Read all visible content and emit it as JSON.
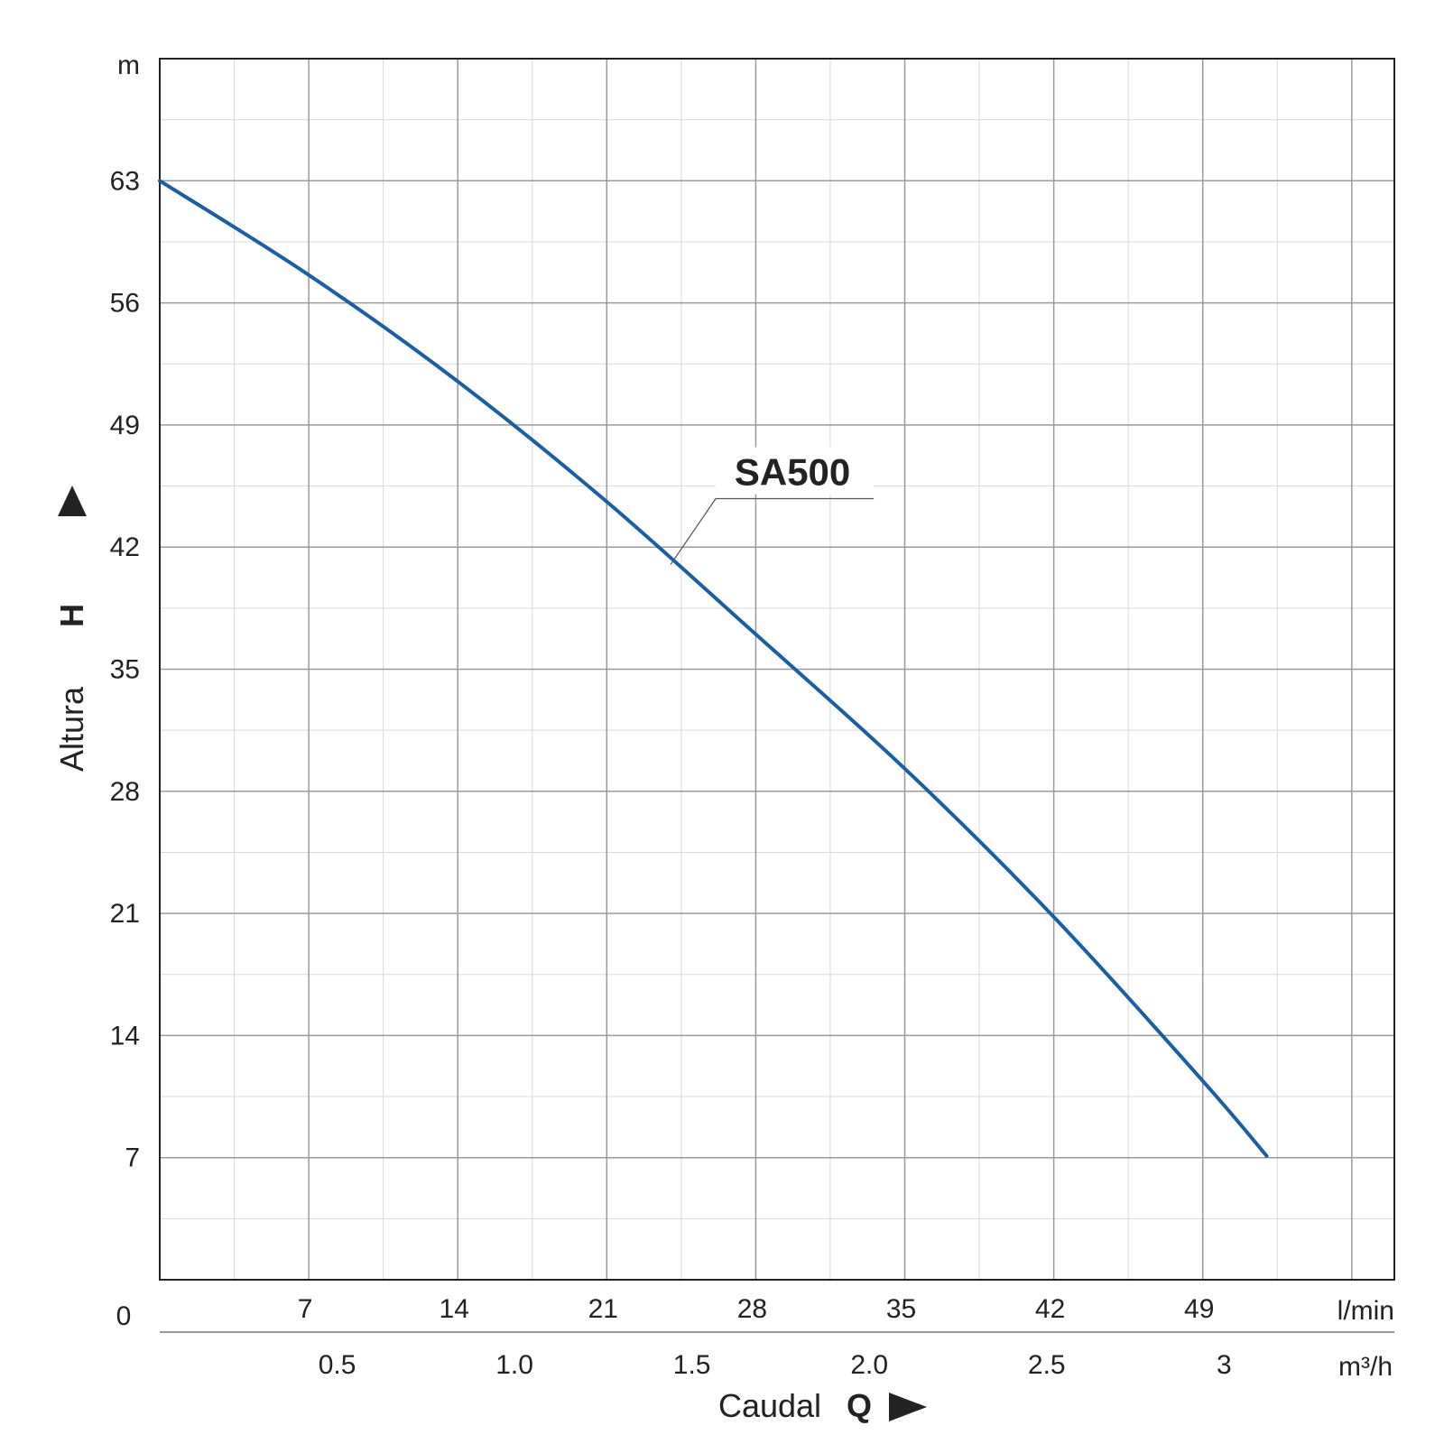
{
  "chart_data": {
    "type": "line",
    "x_axis": {
      "title": "Caudal",
      "symbol": "Q",
      "unit": "l/min",
      "range": [
        0,
        58
      ],
      "ticks": [
        "7",
        "14",
        "21",
        "28",
        "35",
        "42",
        "49"
      ],
      "tick_values": [
        7,
        14,
        21,
        28,
        35,
        42,
        49
      ],
      "origin_label": "0"
    },
    "x_axis_secondary": {
      "unit": "m³/h",
      "ticks": [
        "0.5",
        "1.0",
        "1.5",
        "2.0",
        "2.5",
        "3"
      ],
      "tick_values": [
        0.5,
        1.0,
        1.5,
        2.0,
        2.5,
        3.0
      ]
    },
    "y_axis": {
      "title": "Altura",
      "symbol": "H",
      "unit": "m",
      "range": [
        0,
        70
      ],
      "ticks": [
        "7",
        "14",
        "21",
        "28",
        "35",
        "42",
        "49",
        "56",
        "63"
      ],
      "tick_values": [
        7,
        14,
        21,
        28,
        35,
        42,
        49,
        56,
        63
      ]
    },
    "grid": true,
    "series": [
      {
        "name": "SA500",
        "color": "#1a5fa4",
        "x": [
          0,
          7,
          14,
          21,
          28,
          35,
          42,
          49,
          52
        ],
        "y": [
          63,
          57.6,
          51.5,
          44.6,
          37,
          29.3,
          20.8,
          11.4,
          7.1
        ]
      }
    ]
  }
}
